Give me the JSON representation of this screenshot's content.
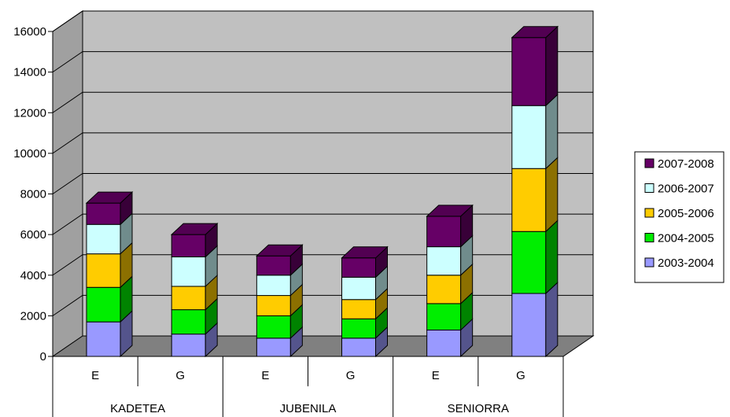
{
  "chart_data": {
    "type": "bar",
    "stacked": true,
    "three_d": true,
    "groups": [
      "KADETEA",
      "JUBENILA",
      "SENIORRA"
    ],
    "categories": [
      "E",
      "G",
      "E",
      "G",
      "E",
      "G"
    ],
    "y_ticks": [
      "0",
      "2000",
      "4000",
      "6000",
      "8000",
      "10000",
      "12000",
      "14000",
      "16000"
    ],
    "ylim": [
      0,
      16000
    ],
    "grid": true,
    "legend_position": "right",
    "series": [
      {
        "name": "2003-2004",
        "color": "#9999ff",
        "values": [
          1700,
          1100,
          900,
          900,
          1300,
          3100
        ]
      },
      {
        "name": "2004-2005",
        "color": "#00ee00",
        "values": [
          1700,
          1200,
          1100,
          950,
          1300,
          3050
        ]
      },
      {
        "name": "2005-2006",
        "color": "#ffcc00",
        "values": [
          1650,
          1150,
          1000,
          950,
          1400,
          3100
        ]
      },
      {
        "name": "2006-2007",
        "color": "#ccffff",
        "values": [
          1450,
          1450,
          1000,
          1100,
          1400,
          3100
        ]
      },
      {
        "name": "2007-2008",
        "color": "#660066",
        "values": [
          1050,
          1100,
          950,
          950,
          1500,
          3350
        ]
      }
    ]
  }
}
